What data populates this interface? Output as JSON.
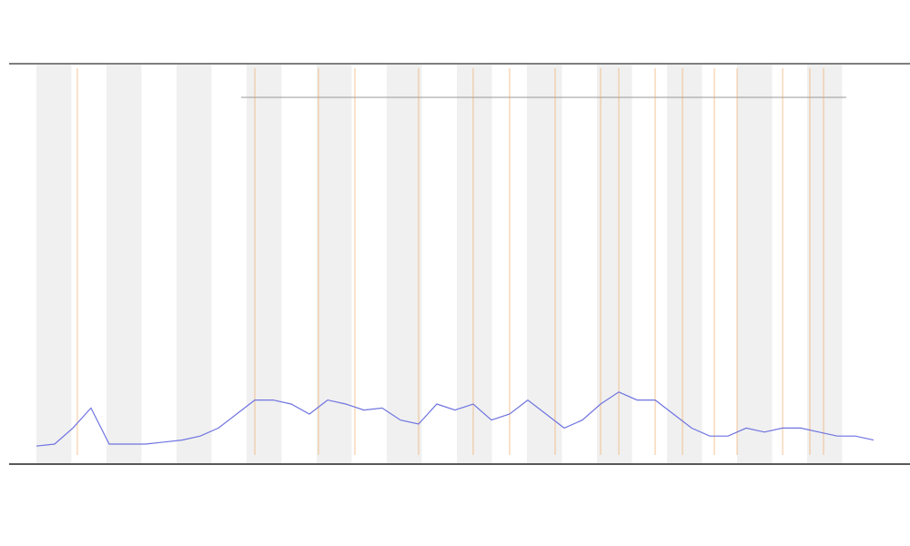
{
  "chart_data": {
    "type": "line",
    "x": [
      0,
      2,
      4,
      6,
      8,
      10,
      12,
      14,
      16,
      18,
      20,
      22,
      24,
      26,
      28,
      30,
      32,
      34,
      36,
      38,
      40,
      42,
      44,
      46,
      48,
      50,
      52,
      54,
      56,
      58,
      60,
      62,
      64,
      66,
      68,
      70,
      72,
      74,
      76,
      78,
      80,
      82,
      84,
      86,
      88,
      90,
      92
    ],
    "series": [
      {
        "color": "#6f74e0",
        "values": [
          4.5,
          5,
          9,
          14,
          5,
          5,
          5,
          5.5,
          6,
          7,
          9,
          12.5,
          16,
          16,
          15,
          12.5,
          16,
          15,
          13.5,
          14,
          11,
          10,
          15,
          13.5,
          15,
          11,
          12.5,
          16,
          12.5,
          9,
          11,
          15,
          18,
          16,
          16,
          12.5,
          9,
          7,
          7,
          9,
          8,
          9,
          9,
          8,
          7,
          7,
          6
        ]
      }
    ],
    "events": {
      "color": "#f0a050",
      "x": [
        4.5,
        24,
        31,
        35,
        42,
        48,
        52,
        57,
        62,
        64,
        68,
        71,
        74.5,
        77,
        82,
        85,
        86.5
      ]
    },
    "xlim": [
      0,
      92
    ],
    "ylim": [
      0,
      100
    ]
  }
}
